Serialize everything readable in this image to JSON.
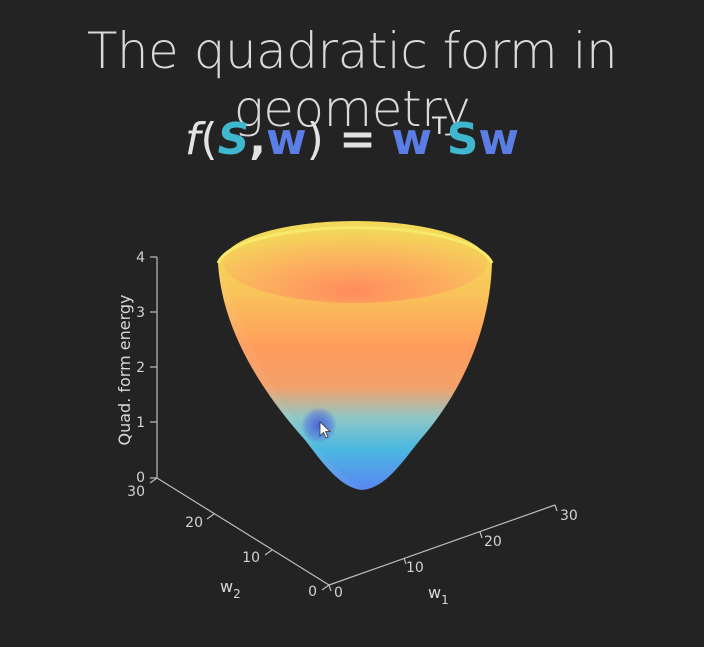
{
  "title": "The quadratic form in geometry",
  "formula": {
    "f": "f",
    "open": "(",
    "S": "S",
    "comma": ",",
    "w": "w",
    "close": ")",
    "equals": "=",
    "rhs_w1": "w",
    "rhs_T": "T",
    "rhs_S": "S",
    "rhs_w2": "w"
  },
  "colors": {
    "background": "#232323",
    "teal": "#3fb7cf",
    "blue": "#5b7ee6",
    "surface_top": "#f3de55",
    "surface_mid": "#ff9a5c",
    "surface_bottom": "#5b8cf0"
  },
  "plot": {
    "zlabel": "Quad. form energy",
    "xlabel_base": "w",
    "xlabel_sub": "1",
    "ylabel_base": "w",
    "ylabel_sub": "2",
    "z_ticks": [
      "0",
      "1",
      "2",
      "3",
      "4"
    ],
    "y_ticks": [
      "30",
      "20",
      "10",
      "0"
    ],
    "x_ticks": [
      "0",
      "10",
      "20",
      "30"
    ]
  }
}
